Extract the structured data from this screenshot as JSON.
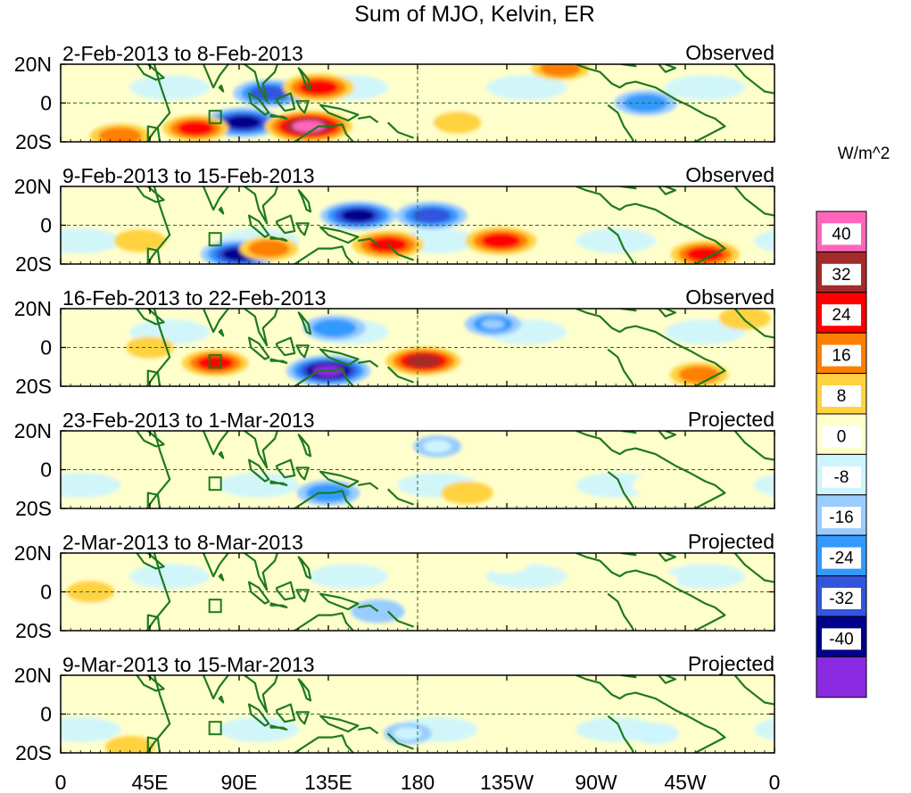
{
  "chart_data": {
    "type": "heatmap",
    "title": "Sum of MJO, Kelvin, ER",
    "colorbar_label": "W/m^2",
    "colorbar_ticks": [
      "40",
      "32",
      "24",
      "16",
      "8",
      "0",
      "-8",
      "-16",
      "-24",
      "-32",
      "-40"
    ],
    "colorbar_colors": [
      "#ff66bb",
      "#a52a2a",
      "#ff0000",
      "#ff7f00",
      "#ffd23f",
      "#ffffcc",
      "#ccf5ff",
      "#99ccff",
      "#3399ff",
      "#3355dd",
      "#00008b",
      "#8a2be2"
    ],
    "lat_ticks": [
      "20N",
      "0",
      "20S"
    ],
    "lon_ticks": [
      "0",
      "45E",
      "90E",
      "135E",
      "180",
      "135W",
      "90W",
      "45W",
      "0"
    ],
    "panels": [
      {
        "period": "2-Feb-2013 to 8-Feb-2013",
        "status": "Observed",
        "anomalies": [
          {
            "lon": 105,
            "lat": 5,
            "value": -30
          },
          {
            "lon": 92,
            "lat": -10,
            "value": -38
          },
          {
            "lon": 125,
            "lat": -12,
            "value": 45
          },
          {
            "lon": 130,
            "lat": 8,
            "value": 30
          },
          {
            "lon": 68,
            "lat": -13,
            "value": 25
          },
          {
            "lon": 252,
            "lat": 18,
            "value": 18
          },
          {
            "lon": 295,
            "lat": 0,
            "value": -22
          },
          {
            "lon": 30,
            "lat": -17,
            "value": 20
          },
          {
            "lon": 200,
            "lat": -10,
            "value": 8
          }
        ]
      },
      {
        "period": "9-Feb-2013 to 15-Feb-2013",
        "status": "Observed",
        "anomalies": [
          {
            "lon": 90,
            "lat": -15,
            "value": -35
          },
          {
            "lon": 150,
            "lat": 5,
            "value": -34
          },
          {
            "lon": 165,
            "lat": -10,
            "value": 30
          },
          {
            "lon": 222,
            "lat": -8,
            "value": 30
          },
          {
            "lon": 325,
            "lat": -15,
            "value": 28
          },
          {
            "lon": 187,
            "lat": 5,
            "value": -30
          },
          {
            "lon": 105,
            "lat": -12,
            "value": 18
          },
          {
            "lon": 40,
            "lat": -8,
            "value": 12
          }
        ]
      },
      {
        "period": "16-Feb-2013 to 22-Feb-2013",
        "status": "Observed",
        "anomalies": [
          {
            "lon": 135,
            "lat": -12,
            "value": -42
          },
          {
            "lon": 138,
            "lat": 10,
            "value": -22
          },
          {
            "lon": 183,
            "lat": -7,
            "value": 34
          },
          {
            "lon": 78,
            "lat": -8,
            "value": 26
          },
          {
            "lon": 218,
            "lat": 12,
            "value": -16
          },
          {
            "lon": 322,
            "lat": -14,
            "value": 18
          },
          {
            "lon": 345,
            "lat": 15,
            "value": 12
          },
          {
            "lon": 45,
            "lat": 0,
            "value": 8
          }
        ]
      },
      {
        "period": "23-Feb-2013 to 1-Mar-2013",
        "status": "Projected",
        "anomalies": [
          {
            "lon": 135,
            "lat": -12,
            "value": -22
          },
          {
            "lon": 205,
            "lat": -12,
            "value": 12
          },
          {
            "lon": 90,
            "lat": 5,
            "value": 6
          },
          {
            "lon": 300,
            "lat": -8,
            "value": 6
          },
          {
            "lon": 190,
            "lat": 12,
            "value": -8
          }
        ]
      },
      {
        "period": "2-Mar-2013 to 8-Mar-2013",
        "status": "Projected",
        "anomalies": [
          {
            "lon": 160,
            "lat": -10,
            "value": -14
          },
          {
            "lon": 80,
            "lat": -12,
            "value": 6
          },
          {
            "lon": 15,
            "lat": 0,
            "value": 8
          },
          {
            "lon": 300,
            "lat": 5,
            "value": 6
          },
          {
            "lon": 225,
            "lat": 15,
            "value": 6
          }
        ]
      },
      {
        "period": "9-Mar-2013 to 15-Mar-2013",
        "status": "Projected",
        "anomalies": [
          {
            "lon": 35,
            "lat": -17,
            "value": 10
          },
          {
            "lon": 175,
            "lat": -10,
            "value": -8
          },
          {
            "lon": 285,
            "lat": 5,
            "value": 6
          },
          {
            "lon": 300,
            "lat": -10,
            "value": -6
          }
        ]
      }
    ]
  }
}
